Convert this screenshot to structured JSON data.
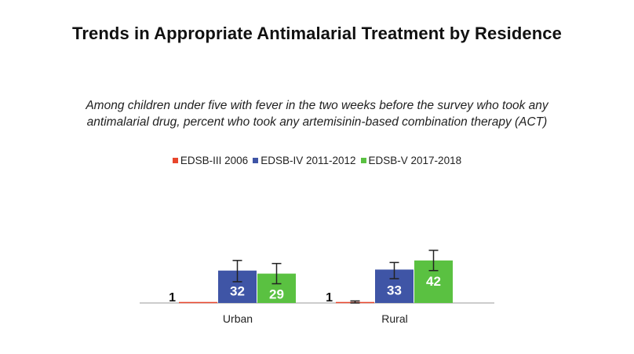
{
  "chart_data": {
    "type": "bar",
    "title": "Trends in Appropriate Antimalarial Treatment by Residence",
    "subtitle": "Among children under five with fever in the two weeks before the survey who took any antimalarial drug, percent who took any artemisinin-based combination therapy (ACT)",
    "categories": [
      "Urban",
      "Rural"
    ],
    "series": [
      {
        "name": "EDSB-III 2006",
        "color": "#e8462c",
        "values": [
          1,
          1
        ],
        "error": [
          null,
          [
            0,
            2
          ]
        ]
      },
      {
        "name": "EDSB-IV 2011-2012",
        "color": "#3f55a6",
        "values": [
          32,
          33
        ],
        "error": [
          [
            21,
            42
          ],
          [
            24,
            40
          ]
        ]
      },
      {
        "name": "EDSB-V 2017-2018",
        "color": "#5ac141",
        "values": [
          29,
          42
        ],
        "error": [
          [
            19,
            39
          ],
          [
            32,
            52
          ]
        ]
      }
    ],
    "data_labels": [
      [
        "1",
        "32",
        "29"
      ],
      [
        "1",
        "33",
        "42"
      ]
    ],
    "ylim": [
      0,
      60
    ],
    "grid": false,
    "legend_position": "top"
  }
}
